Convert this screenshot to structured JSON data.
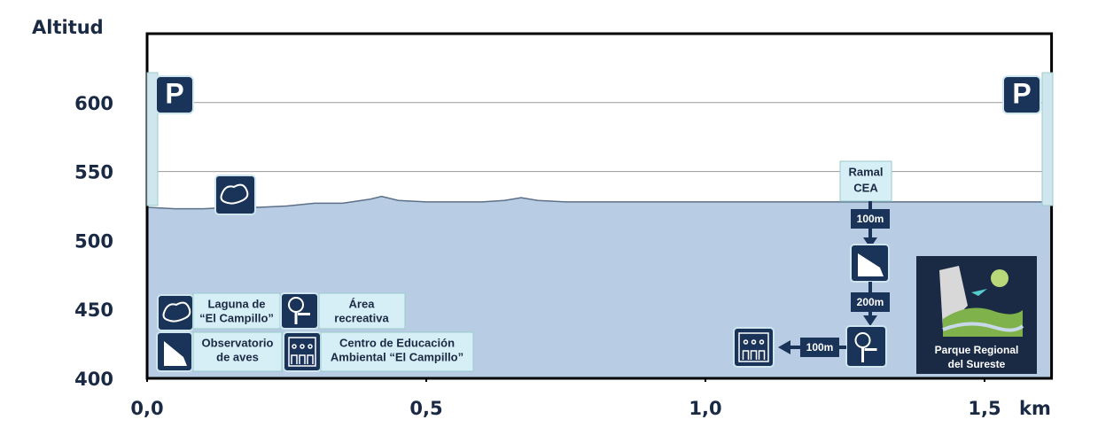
{
  "chart_data": {
    "type": "area",
    "y_label": "Altitud",
    "x_unit": "km",
    "x": [
      0,
      0.05,
      0.1,
      0.15,
      0.2,
      0.25,
      0.3,
      0.35,
      0.4,
      0.42,
      0.45,
      0.5,
      0.55,
      0.6,
      0.64,
      0.67,
      0.7,
      0.75,
      0.8,
      0.9,
      1.0,
      1.1,
      1.2,
      1.3,
      1.4,
      1.5,
      1.62
    ],
    "series": [
      {
        "color": "#5c7088",
        "fill": "#b8cce4",
        "values": [
          524,
          523,
          523,
          524,
          524,
          525,
          527,
          527,
          530,
          532,
          529,
          528,
          528,
          528,
          529,
          531,
          529,
          528,
          528,
          528,
          528,
          528,
          528,
          528,
          528,
          528,
          528
        ]
      }
    ],
    "xlim": [
      0,
      1.62
    ],
    "ylim": [
      400,
      650
    ],
    "xticks": [
      {
        "value": 0,
        "label": "0,0"
      },
      {
        "value": 0.5,
        "label": "0,5"
      },
      {
        "value": 1.0,
        "label": "1,0"
      },
      {
        "value": 1.5,
        "label": "1,5"
      }
    ],
    "yticks": [
      400,
      450,
      500,
      550,
      600
    ],
    "grid": true,
    "parking": [
      "P",
      "P"
    ],
    "annotations": [
      {
        "lines": [
          "Laguna de",
          "“El Campillo”"
        ]
      },
      {
        "lines": [
          "Área",
          "recreativa"
        ]
      },
      {
        "lines": [
          "Observatorio",
          "de aves"
        ]
      },
      {
        "lines": [
          "Centro de Educación",
          "Ambiental “El Campillo”"
        ]
      },
      {
        "lines": [
          "Ramal",
          "CEA"
        ]
      },
      {
        "lines": [
          "100m"
        ]
      },
      {
        "lines": [
          "200m"
        ]
      },
      {
        "lines": [
          "100m"
        ]
      },
      {
        "lines": [
          "Parque Regional",
          "del Sureste"
        ]
      }
    ]
  }
}
